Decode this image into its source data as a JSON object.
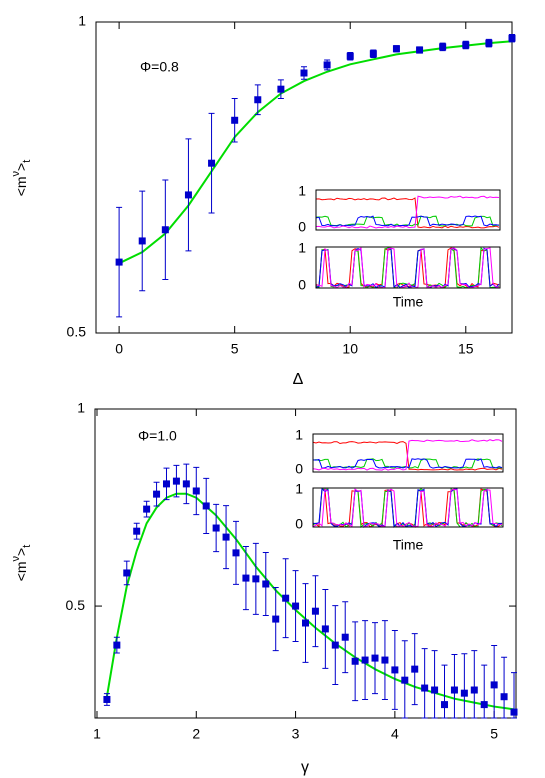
{
  "chart_data": [
    {
      "type": "errorbar",
      "annotation": "Φ=0.8",
      "xlabel": "Δ",
      "ylabel": {
        "base": "<m",
        "sup": "ν",
        "close": ">",
        "sub": "t"
      },
      "xlim": [
        -1,
        17
      ],
      "ylim": [
        0.5,
        1
      ],
      "xticks": [
        0,
        5,
        10,
        15
      ],
      "yticks": [
        0.5,
        1
      ],
      "series": [
        {
          "color": "#0000cc",
          "x": [
            0,
            1,
            2,
            3,
            4,
            5,
            6,
            7,
            8,
            9,
            10,
            11,
            12,
            13,
            14,
            15,
            16,
            17
          ],
          "values": [
            0.614,
            0.648,
            0.666,
            0.722,
            0.773,
            0.842,
            0.875,
            0.892,
            0.918,
            0.931,
            0.945,
            0.949,
            0.957,
            0.955,
            0.96,
            0.963,
            0.966,
            0.974
          ],
          "errors": [
            0.088,
            0.08,
            0.08,
            0.09,
            0.08,
            0.035,
            0.024,
            0.015,
            0.01,
            0.008,
            0.006,
            0.006,
            0.005,
            0.005,
            0.006,
            0.006,
            0.006,
            0.006
          ]
        },
        {
          "color": "#00dd00",
          "x": [
            0,
            1,
            2,
            3,
            4,
            5,
            6,
            7,
            8,
            9,
            10,
            11,
            12,
            13,
            14,
            15,
            16,
            17
          ],
          "values": [
            0.612,
            0.63,
            0.66,
            0.705,
            0.76,
            0.815,
            0.855,
            0.885,
            0.905,
            0.92,
            0.932,
            0.94,
            0.948,
            0.953,
            0.958,
            0.962,
            0.966,
            0.969
          ]
        }
      ],
      "inset": {
        "ticks": [
          "1",
          "0",
          "1",
          "0"
        ],
        "xlabel": "Time"
      }
    },
    {
      "type": "errorbar",
      "annotation": "Φ=1.0",
      "xlabel": "γ",
      "ylabel": {
        "base": "<m",
        "sup": "ν",
        "close": ">",
        "sub": "t"
      },
      "xlim": [
        0.98,
        5.22
      ],
      "ylim": [
        0.216,
        1
      ],
      "xticks": [
        1,
        2,
        3,
        4,
        5
      ],
      "yticks": [
        0.5,
        1
      ],
      "series": [
        {
          "color": "#0000cc",
          "x": [
            1.1,
            1.2,
            1.3,
            1.4,
            1.5,
            1.6,
            1.7,
            1.8,
            1.9,
            2.0,
            2.1,
            2.2,
            2.3,
            2.4,
            2.5,
            2.6,
            2.7,
            2.8,
            2.9,
            3.0,
            3.1,
            3.2,
            3.3,
            3.4,
            3.5,
            3.6,
            3.7,
            3.8,
            3.9,
            4.0,
            4.1,
            4.2,
            4.3,
            4.4,
            4.5,
            4.6,
            4.7,
            4.8,
            4.9,
            5.0,
            5.1,
            5.2
          ],
          "values": [
            0.263,
            0.401,
            0.584,
            0.69,
            0.746,
            0.784,
            0.81,
            0.817,
            0.81,
            0.792,
            0.754,
            0.698,
            0.675,
            0.635,
            0.571,
            0.569,
            0.556,
            0.467,
            0.52,
            0.5,
            0.457,
            0.487,
            0.442,
            0.401,
            0.421,
            0.36,
            0.363,
            0.368,
            0.363,
            0.338,
            0.312,
            0.34,
            0.292,
            0.287,
            0.25,
            0.287,
            0.279,
            0.287,
            0.25,
            0.3,
            0.27,
            0.231
          ],
          "errors": [
            0.015,
            0.02,
            0.03,
            0.02,
            0.02,
            0.03,
            0.04,
            0.04,
            0.05,
            0.06,
            0.07,
            0.06,
            0.08,
            0.08,
            0.08,
            0.09,
            0.08,
            0.08,
            0.1,
            0.09,
            0.1,
            0.09,
            0.1,
            0.1,
            0.09,
            0.1,
            0.1,
            0.09,
            0.1,
            0.1,
            0.1,
            0.09,
            0.1,
            0.1,
            0.1,
            0.09,
            0.1,
            0.1,
            0.1,
            0.1,
            0.1,
            0.1
          ]
        },
        {
          "color": "#00dd00",
          "x": [
            1.1,
            1.2,
            1.3,
            1.4,
            1.5,
            1.6,
            1.7,
            1.8,
            1.9,
            2.0,
            2.2,
            2.4,
            2.6,
            2.8,
            3.0,
            3.2,
            3.4,
            3.6,
            3.8,
            4.0,
            4.2,
            4.4,
            4.6,
            4.8,
            5.0,
            5.2
          ],
          "values": [
            0.27,
            0.42,
            0.55,
            0.64,
            0.71,
            0.75,
            0.775,
            0.785,
            0.785,
            0.775,
            0.73,
            0.67,
            0.6,
            0.54,
            0.49,
            0.445,
            0.405,
            0.37,
            0.34,
            0.315,
            0.295,
            0.28,
            0.265,
            0.255,
            0.245,
            0.238
          ]
        }
      ],
      "inset": {
        "ticks": [
          "1",
          "0",
          "1",
          "0"
        ],
        "xlabel": "Time"
      }
    }
  ]
}
